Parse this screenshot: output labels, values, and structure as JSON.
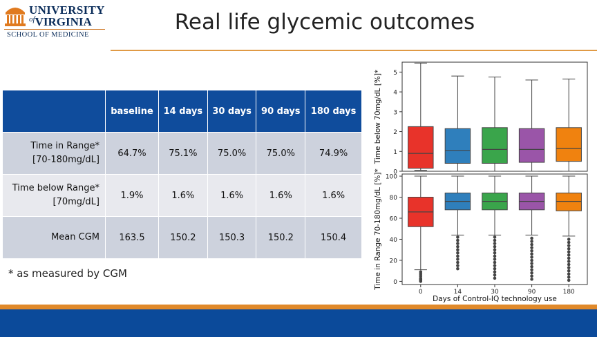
{
  "logo": {
    "line1": "UNIVERSITY",
    "line2_of": "of",
    "line2": "VIRGINIA",
    "subtitle": "SCHOOL OF MEDICINE"
  },
  "title": "Real life glycemic outcomes",
  "table": {
    "headers": [
      "",
      "baseline",
      "14 days",
      "30 days",
      "90 days",
      "180 days"
    ],
    "rows": [
      {
        "label_line1": "Time in Range*",
        "label_line2": "[70-180mg/dL]",
        "values": [
          "64.7%",
          "75.1%",
          "75.0%",
          "75.0%",
          "74.9%"
        ]
      },
      {
        "label_line1": "Time below Range*",
        "label_line2": "[70mg/dL]",
        "values": [
          "1.9%",
          "1.6%",
          "1.6%",
          "1.6%",
          "1.6%"
        ]
      },
      {
        "label_line1": "Mean CGM",
        "label_line2": "",
        "values": [
          "163.5",
          "150.2",
          "150.3",
          "150.2",
          "150.4"
        ]
      }
    ]
  },
  "footnote": "* as measured by CGM",
  "colors": {
    "header_blue": "#0f4c9c",
    "accent_orange": "#e0892a",
    "box_colors": [
      "#e8332a",
      "#2f7fbc",
      "#3aa54b",
      "#9a55a8",
      "#f0820f"
    ]
  },
  "chart_data": [
    {
      "type": "boxplot",
      "ylabel": "Time below 70mg/dL [%]*",
      "ylim": [
        0,
        5.5
      ],
      "yticks": [
        0,
        1,
        2,
        3,
        4,
        5
      ],
      "categories": [
        "0",
        "14",
        "30",
        "90",
        "180"
      ],
      "boxes": [
        {
          "min": 0.05,
          "q1": 0.15,
          "median": 0.9,
          "q3": 2.25,
          "max": 5.45
        },
        {
          "min": 0.0,
          "q1": 0.4,
          "median": 1.05,
          "q3": 2.15,
          "max": 4.8
        },
        {
          "min": 0.0,
          "q1": 0.4,
          "median": 1.1,
          "q3": 2.2,
          "max": 4.75
        },
        {
          "min": 0.0,
          "q1": 0.45,
          "median": 1.1,
          "q3": 2.15,
          "max": 4.6
        },
        {
          "min": 0.0,
          "q1": 0.5,
          "median": 1.15,
          "q3": 2.2,
          "max": 4.65
        }
      ]
    },
    {
      "type": "boxplot",
      "ylabel": "Time in Range 70-180mg/dL [%]*",
      "xlabel": "Days of Control-IQ technology use",
      "ylim": [
        -3,
        102
      ],
      "yticks": [
        0,
        20,
        40,
        60,
        80,
        100
      ],
      "categories": [
        "0",
        "14",
        "30",
        "90",
        "180"
      ],
      "boxes": [
        {
          "min": 11,
          "q1": 52,
          "median": 66,
          "q3": 80,
          "max": 100,
          "outliers": [
            0,
            1,
            2,
            3,
            5,
            7,
            9
          ]
        },
        {
          "min": 44,
          "q1": 68,
          "median": 76,
          "q3": 84,
          "max": 100,
          "outliers": [
            12,
            15,
            18,
            21,
            24,
            27,
            30,
            33,
            36,
            39,
            42
          ]
        },
        {
          "min": 44,
          "q1": 68,
          "median": 76,
          "q3": 84,
          "max": 100,
          "outliers": [
            3,
            6,
            9,
            12,
            15,
            18,
            21,
            24,
            27,
            30,
            33,
            36,
            39,
            42
          ]
        },
        {
          "min": 44,
          "q1": 68,
          "median": 76,
          "q3": 84,
          "max": 100,
          "outliers": [
            2,
            5,
            8,
            11,
            14,
            17,
            20,
            23,
            26,
            29,
            32,
            35,
            38,
            41
          ]
        },
        {
          "min": 43,
          "q1": 67,
          "median": 76,
          "q3": 84,
          "max": 100,
          "outliers": [
            1,
            4,
            7,
            10,
            13,
            16,
            19,
            22,
            25,
            28,
            31,
            34,
            37,
            40
          ]
        }
      ]
    }
  ]
}
